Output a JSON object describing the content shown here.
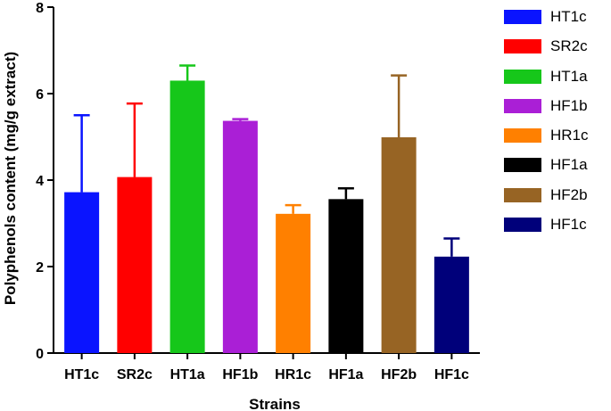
{
  "chart_data": {
    "type": "bar",
    "title": "",
    "xlabel": "Strains",
    "ylabel": "Polyphenols content (mg/g extract)",
    "ylim": [
      0,
      8
    ],
    "yticks": [
      "0",
      "2",
      "4",
      "6",
      "8"
    ],
    "grid": false,
    "legend_position": "right",
    "categories": [
      "HT1c",
      "SR2c",
      "HT1a",
      "HF1b",
      "HR1c",
      "HF1a",
      "HF2b",
      "HF1c"
    ],
    "values": [
      3.72,
      4.07,
      6.3,
      5.37,
      3.22,
      3.56,
      4.99,
      2.23
    ],
    "errors": [
      1.78,
      1.7,
      0.35,
      0.04,
      0.2,
      0.25,
      1.43,
      0.42
    ],
    "colors": [
      "#0a14ff",
      "#ff0000",
      "#16c71a",
      "#aa1fd6",
      "#ff8000",
      "#000000",
      "#976424",
      "#00007a"
    ]
  }
}
